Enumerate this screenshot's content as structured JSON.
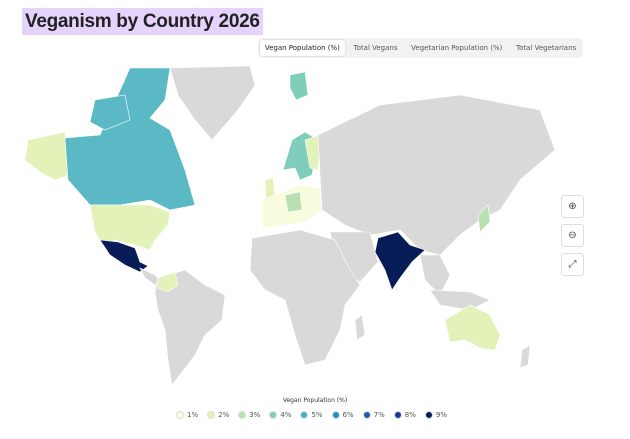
{
  "header": {
    "title": "Veganism by Country 2026"
  },
  "tabs": [
    "Vegan Population (%)",
    "Total Vegans",
    "Vegetarian Population (%)",
    "Total Vegetarians"
  ],
  "legend": {
    "title": "Vegan Population (%)",
    "items": [
      {
        "label": "1%",
        "color": "#f7fcdf"
      },
      {
        "label": "2%",
        "color": "#e2f2b8"
      },
      {
        "label": "3%",
        "color": "#b8e0b0"
      },
      {
        "label": "4%",
        "color": "#7fcdbb"
      },
      {
        "label": "5%",
        "color": "#41b6c4"
      },
      {
        "label": "6%",
        "color": "#1d91c0"
      },
      {
        "label": "7%",
        "color": "#225ea8"
      },
      {
        "label": "8%",
        "color": "#253494"
      },
      {
        "label": "9%",
        "color": "#081d58"
      }
    ]
  }
}
